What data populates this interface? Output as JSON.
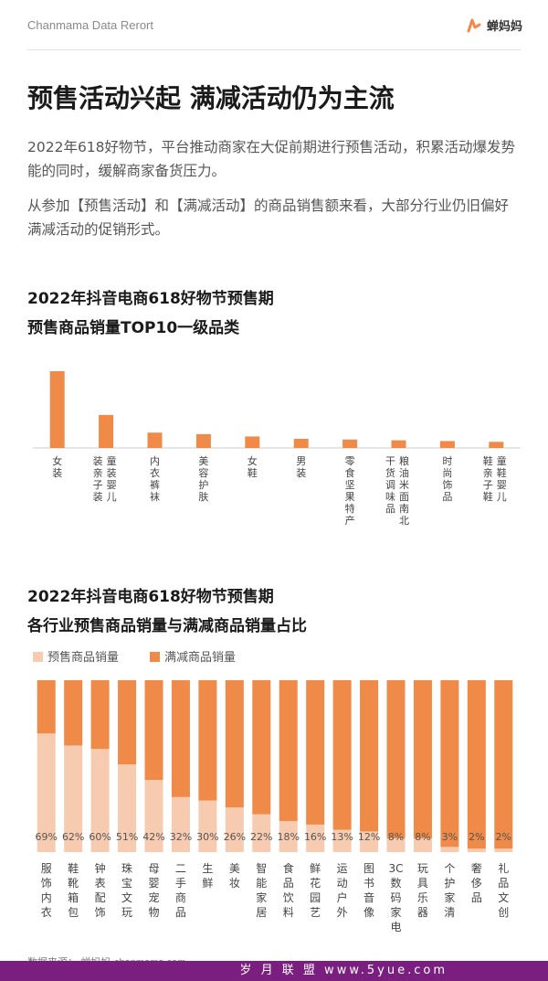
{
  "header": {
    "brand": "Chanmama Data Rerort",
    "logo_text": "蝉妈妈"
  },
  "main_title": "预售活动兴起 满减活动仍为主流",
  "paragraphs": [
    "2022年618好物节，平台推动商家在大促前期进行预售活动，积累活动爆发势能的同时，缓解商家备货压力。",
    "从参加【预售活动】和【满减活动】的商品销售额来看，大部分行业仍旧偏好满减活动的促销形式。"
  ],
  "colors": {
    "accent": "#ef8a48",
    "light": "#f6cbb0",
    "axis": "#cccccc"
  },
  "chart_data": [
    {
      "type": "bar",
      "title": "2022年抖音电商618好物节预售期",
      "subtitle": "预售商品销量TOP10一级品类",
      "categories": [
        "女装",
        "童装婴儿装亲子装",
        "内衣裤袜",
        "美容护肤",
        "女鞋",
        "男装",
        "零食坚果特产",
        "粮油米面南北干货调味品",
        "时尚饰品",
        "童鞋婴儿鞋亲子鞋"
      ],
      "values": [
        100,
        43,
        20,
        18,
        15,
        12,
        11,
        10,
        9,
        8
      ],
      "grid": false,
      "legend": "none"
    },
    {
      "type": "bar",
      "stacked": true,
      "percent": true,
      "title": "2022年抖音电商618好物节预售期",
      "subtitle": "各行业预售商品销量与满减商品销量占比",
      "categories": [
        "服饰内衣",
        "鞋靴箱包",
        "钟表配饰",
        "珠宝文玩",
        "母婴宠物",
        "二手商品",
        "生鲜",
        "美妆",
        "智能家居",
        "食品饮料",
        "鲜花园艺",
        "运动户外",
        "图书音像",
        "3C数码家电",
        "玩具乐器",
        "个护家清",
        "奢侈品",
        "礼品文创"
      ],
      "series": [
        {
          "name": "预售商品销量",
          "values": [
            69,
            62,
            60,
            51,
            42,
            32,
            30,
            26,
            22,
            18,
            16,
            13,
            12,
            8,
            8,
            3,
            2,
            2
          ]
        },
        {
          "name": "满减商品销量",
          "values": [
            31,
            38,
            40,
            49,
            58,
            68,
            70,
            74,
            78,
            82,
            84,
            87,
            88,
            92,
            92,
            97,
            98,
            98
          ]
        }
      ],
      "data_labels": [
        "69%",
        "62%",
        "60%",
        "51%",
        "42%",
        "32%",
        "30%",
        "26%",
        "22%",
        "18%",
        "16%",
        "13%",
        "12%",
        "8%",
        "8%",
        "3%",
        "2%",
        "2%"
      ],
      "ylim": [
        0,
        100
      ],
      "grid": false,
      "legend": "top-left"
    }
  ],
  "footer": {
    "source_label": "数据来源：",
    "source_brand": "蝉妈妈",
    "source_site": "chanmama.com"
  },
  "watermark": "岁 月 联 盟  www.5yue.com"
}
